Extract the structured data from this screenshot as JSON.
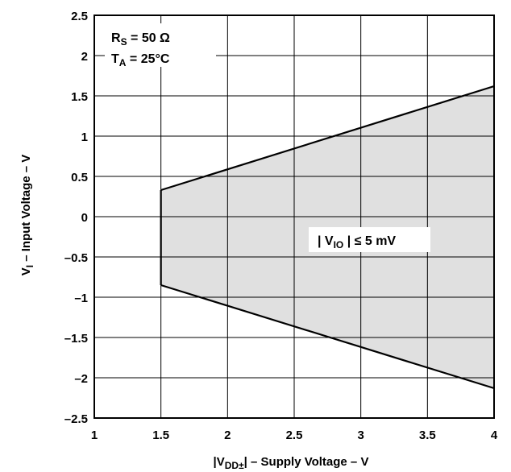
{
  "chart_data": {
    "type": "area",
    "title": "",
    "xlabel_parts": {
      "lead": "|V",
      "sub": "DD±",
      "tail": "| – Supply Voltage – V"
    },
    "ylabel_parts": {
      "lead": "V",
      "sub": "I",
      "tail": "  – Input Voltage – V"
    },
    "xlim": [
      1,
      4
    ],
    "ylim": [
      -2.5,
      2.5
    ],
    "x_ticks": [
      1,
      1.5,
      2,
      2.5,
      3,
      3.5,
      4
    ],
    "x_tick_labels": [
      "1",
      "1.5",
      "2",
      "2.5",
      "3",
      "3.5",
      "4"
    ],
    "y_ticks": [
      2.5,
      2,
      1.5,
      1,
      0.5,
      0,
      -0.5,
      -1,
      -1.5,
      -2,
      -2.5
    ],
    "y_tick_labels": [
      "2.5",
      "2",
      "1.5",
      "1",
      "0.5",
      "0",
      "–0.5",
      "–1",
      "–1.5",
      "–2",
      "–2.5"
    ],
    "grid": true,
    "series": [
      {
        "role": "upper",
        "x": [
          1.5,
          4
        ],
        "y": [
          0.33,
          1.62
        ]
      },
      {
        "role": "lower",
        "x": [
          1.5,
          4
        ],
        "y": [
          -0.85,
          -2.13
        ]
      }
    ],
    "region_fill": "#e0e0e0",
    "conditions": [
      {
        "lead": "R",
        "sub": "S",
        "tail": " = 50 Ω"
      },
      {
        "lead": "T",
        "sub": "A",
        "tail": " = 25°C"
      }
    ],
    "region_label": {
      "lead": "| V",
      "sub": "IO",
      "tail": " | ≤ 5 mV"
    }
  }
}
